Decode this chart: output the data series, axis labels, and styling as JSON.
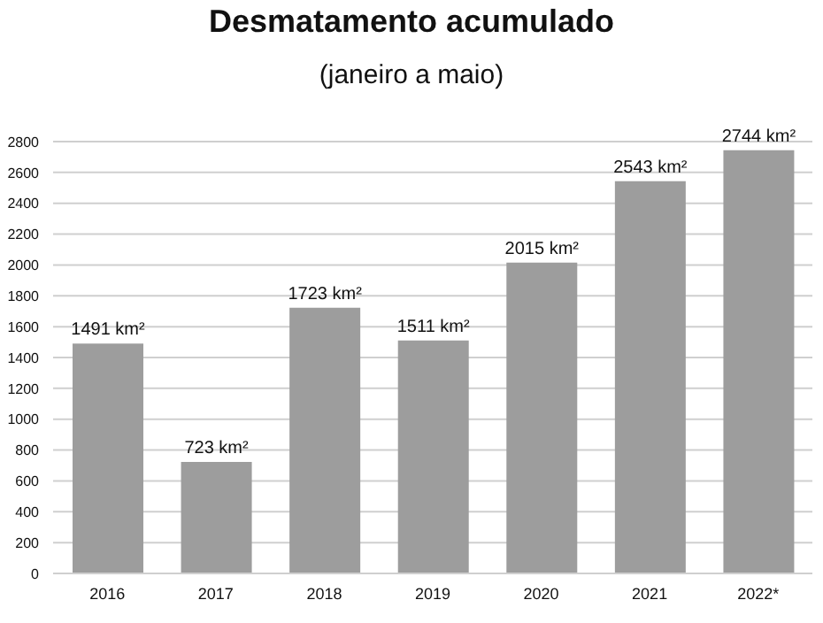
{
  "chart_data": {
    "type": "bar",
    "title": "Desmatamento acumulado",
    "subtitle": "(janeiro a maio)",
    "categories": [
      "2016",
      "2017",
      "2018",
      "2019",
      "2020",
      "2021",
      "2022*"
    ],
    "values": [
      1491,
      723,
      1723,
      1511,
      2015,
      2543,
      2744
    ],
    "value_labels": [
      "1491 km²",
      "723 km²",
      "1723 km²",
      "1511 km²",
      "2015 km²",
      "2543 km²",
      "2744 km²"
    ],
    "color": "#9d9d9d",
    "ylim": [
      0,
      2800
    ],
    "yticks": [
      0,
      200,
      400,
      600,
      800,
      1000,
      1200,
      1400,
      1600,
      1800,
      2000,
      2200,
      2400,
      2600,
      2800
    ],
    "grid": "y"
  }
}
